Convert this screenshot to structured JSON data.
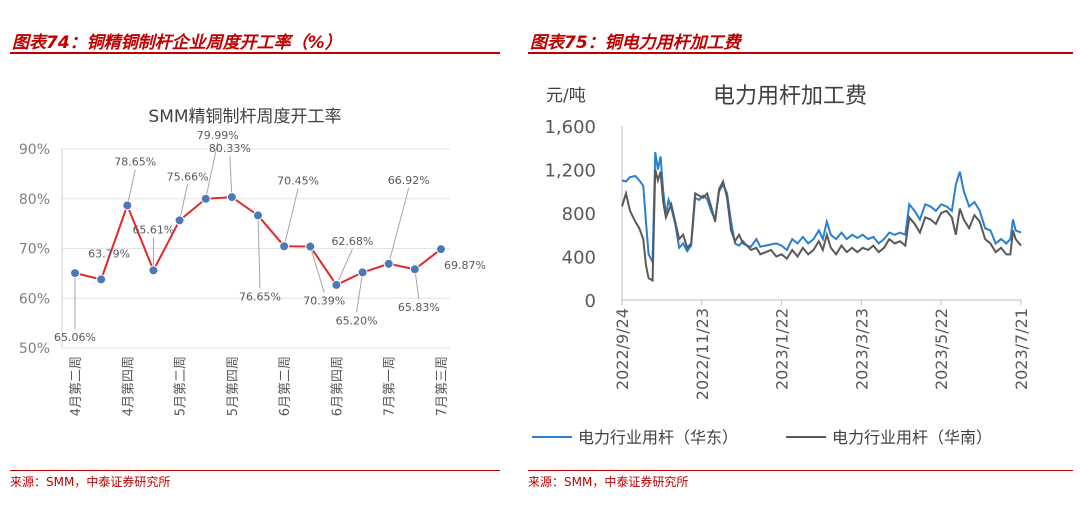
{
  "left": {
    "figure_title": "图表74：铜精铜制杆企业周度开工率（%）",
    "source": "来源：SMM，中泰证券研究所"
  },
  "right": {
    "figure_title": "图表75：铜电力用杆加工费",
    "source": "来源：SMM，中泰证券研究所"
  },
  "colors": {
    "accent": "#c00000",
    "line_red": "#e02a2a",
    "marker": "#4a78b8",
    "line_blue": "#2a7fd0",
    "line_gray": "#595959"
  },
  "chart_data": [
    {
      "type": "line",
      "title": "SMM精铜制杆周度开工率",
      "ylim": [
        50,
        90
      ],
      "yticks": [
        "50%",
        "60%",
        "70%",
        "80%",
        "90%"
      ],
      "xtick_labels": [
        "4月第二周",
        "4月第四周",
        "5月第二周",
        "5月第四周",
        "6月第二周",
        "6月第四周",
        "7月第一周",
        "7月第三周"
      ],
      "xtick_index": [
        0,
        2,
        4,
        6,
        8,
        10,
        12,
        14
      ],
      "values": [
        65.06,
        63.79,
        78.65,
        65.61,
        75.66,
        79.99,
        80.33,
        76.65,
        70.45,
        70.39,
        62.68,
        65.2,
        66.92,
        65.83,
        69.87
      ],
      "data_labels": [
        "65.06%",
        "63.79%",
        "78.65%",
        "65.61%",
        "75.66%",
        "79.99%",
        "80.33%",
        "76.65%",
        "70.45%",
        "70.39%",
        "62.68%",
        "65.20%",
        "66.92%",
        "65.83%",
        "69.87%"
      ]
    },
    {
      "type": "line",
      "title": "电力用杆加工费",
      "ylabel": "元/吨",
      "ylim": [
        0,
        1600
      ],
      "yticks": [
        "0",
        "400",
        "800",
        "1,200",
        "1,600"
      ],
      "xtick_labels": [
        "2022/9/24",
        "2022/11/23",
        "2023/1/22",
        "2023/3/23",
        "2023/5/22",
        "2023/7/21"
      ],
      "xlim": [
        "2022-09-24",
        "2023-07-21"
      ],
      "series": [
        {
          "name": "电力行业用杆（华东）",
          "color": "#2a7fd0",
          "points": [
            [
              "2022-09-24",
              1100
            ],
            [
              "2022-09-27",
              1090
            ],
            [
              "2022-09-30",
              1130
            ],
            [
              "2022-10-04",
              1140
            ],
            [
              "2022-10-07",
              1100
            ],
            [
              "2022-10-10",
              1050
            ],
            [
              "2022-10-12",
              720
            ],
            [
              "2022-10-14",
              420
            ],
            [
              "2022-10-17",
              350
            ],
            [
              "2022-10-19",
              1360
            ],
            [
              "2022-10-21",
              1200
            ],
            [
              "2022-10-23",
              1320
            ],
            [
              "2022-10-25",
              1000
            ],
            [
              "2022-10-27",
              780
            ],
            [
              "2022-10-29",
              920
            ],
            [
              "2022-10-31",
              850
            ],
            [
              "2022-11-03",
              700
            ],
            [
              "2022-11-06",
              480
            ],
            [
              "2022-11-09",
              520
            ],
            [
              "2022-11-12",
              450
            ],
            [
              "2022-11-15",
              500
            ],
            [
              "2022-11-18",
              940
            ],
            [
              "2022-11-21",
              920
            ],
            [
              "2022-11-24",
              960
            ],
            [
              "2022-11-27",
              930
            ],
            [
              "2022-11-30",
              820
            ],
            [
              "2022-12-03",
              740
            ],
            [
              "2022-12-06",
              1000
            ],
            [
              "2022-12-09",
              1060
            ],
            [
              "2022-12-12",
              980
            ],
            [
              "2022-12-15",
              720
            ],
            [
              "2022-12-18",
              520
            ],
            [
              "2022-12-21",
              500
            ],
            [
              "2022-12-24",
              540
            ],
            [
              "2022-12-27",
              500
            ],
            [
              "2022-12-30",
              490
            ],
            [
              "2023-01-03",
              560
            ],
            [
              "2023-01-06",
              490
            ],
            [
              "2023-01-10",
              500
            ],
            [
              "2023-01-14",
              510
            ],
            [
              "2023-01-18",
              520
            ],
            [
              "2023-01-22",
              500
            ],
            [
              "2023-01-26",
              460
            ],
            [
              "2023-01-30",
              560
            ],
            [
              "2023-02-03",
              520
            ],
            [
              "2023-02-07",
              580
            ],
            [
              "2023-02-11",
              520
            ],
            [
              "2023-02-15",
              560
            ],
            [
              "2023-02-19",
              640
            ],
            [
              "2023-02-22",
              560
            ],
            [
              "2023-02-25",
              720
            ],
            [
              "2023-02-28",
              600
            ],
            [
              "2023-03-04",
              560
            ],
            [
              "2023-03-08",
              620
            ],
            [
              "2023-03-12",
              560
            ],
            [
              "2023-03-16",
              600
            ],
            [
              "2023-03-20",
              570
            ],
            [
              "2023-03-24",
              600
            ],
            [
              "2023-03-28",
              560
            ],
            [
              "2023-04-01",
              580
            ],
            [
              "2023-04-05",
              520
            ],
            [
              "2023-04-09",
              560
            ],
            [
              "2023-04-13",
              620
            ],
            [
              "2023-04-17",
              600
            ],
            [
              "2023-04-21",
              620
            ],
            [
              "2023-04-25",
              600
            ],
            [
              "2023-04-28",
              880
            ],
            [
              "2023-05-02",
              820
            ],
            [
              "2023-05-06",
              740
            ],
            [
              "2023-05-10",
              880
            ],
            [
              "2023-05-14",
              860
            ],
            [
              "2023-05-18",
              820
            ],
            [
              "2023-05-22",
              880
            ],
            [
              "2023-05-26",
              860
            ],
            [
              "2023-05-30",
              820
            ],
            [
              "2023-06-02",
              1060
            ],
            [
              "2023-06-05",
              1180
            ],
            [
              "2023-06-08",
              1000
            ],
            [
              "2023-06-12",
              860
            ],
            [
              "2023-06-16",
              900
            ],
            [
              "2023-06-20",
              820
            ],
            [
              "2023-06-24",
              660
            ],
            [
              "2023-06-28",
              640
            ],
            [
              "2023-07-02",
              520
            ],
            [
              "2023-07-06",
              560
            ],
            [
              "2023-07-10",
              520
            ],
            [
              "2023-07-13",
              560
            ],
            [
              "2023-07-15",
              740
            ],
            [
              "2023-07-17",
              640
            ],
            [
              "2023-07-21",
              620
            ]
          ]
        },
        {
          "name": "电力行业用杆（华南）",
          "color": "#595959",
          "points": [
            [
              "2022-09-24",
              860
            ],
            [
              "2022-09-27",
              980
            ],
            [
              "2022-09-30",
              820
            ],
            [
              "2022-10-04",
              720
            ],
            [
              "2022-10-07",
              660
            ],
            [
              "2022-10-10",
              560
            ],
            [
              "2022-10-12",
              320
            ],
            [
              "2022-10-14",
              200
            ],
            [
              "2022-10-17",
              180
            ],
            [
              "2022-10-19",
              1200
            ],
            [
              "2022-10-21",
              1100
            ],
            [
              "2022-10-23",
              1180
            ],
            [
              "2022-10-25",
              900
            ],
            [
              "2022-10-27",
              760
            ],
            [
              "2022-10-29",
              820
            ],
            [
              "2022-10-31",
              880
            ],
            [
              "2022-11-03",
              720
            ],
            [
              "2022-11-06",
              560
            ],
            [
              "2022-11-09",
              600
            ],
            [
              "2022-11-12",
              480
            ],
            [
              "2022-11-15",
              520
            ],
            [
              "2022-11-18",
              980
            ],
            [
              "2022-11-21",
              960
            ],
            [
              "2022-11-24",
              940
            ],
            [
              "2022-11-27",
              980
            ],
            [
              "2022-11-30",
              860
            ],
            [
              "2022-12-03",
              720
            ],
            [
              "2022-12-06",
              1020
            ],
            [
              "2022-12-09",
              1090
            ],
            [
              "2022-12-12",
              940
            ],
            [
              "2022-12-15",
              640
            ],
            [
              "2022-12-18",
              540
            ],
            [
              "2022-12-21",
              600
            ],
            [
              "2022-12-24",
              520
            ],
            [
              "2022-12-27",
              500
            ],
            [
              "2022-12-30",
              460
            ],
            [
              "2023-01-03",
              480
            ],
            [
              "2023-01-06",
              420
            ],
            [
              "2023-01-10",
              440
            ],
            [
              "2023-01-14",
              460
            ],
            [
              "2023-01-18",
              400
            ],
            [
              "2023-01-22",
              420
            ],
            [
              "2023-01-26",
              380
            ],
            [
              "2023-01-30",
              460
            ],
            [
              "2023-02-03",
              400
            ],
            [
              "2023-02-07",
              480
            ],
            [
              "2023-02-11",
              420
            ],
            [
              "2023-02-15",
              460
            ],
            [
              "2023-02-19",
              540
            ],
            [
              "2023-02-22",
              460
            ],
            [
              "2023-02-25",
              600
            ],
            [
              "2023-02-28",
              480
            ],
            [
              "2023-03-04",
              420
            ],
            [
              "2023-03-08",
              500
            ],
            [
              "2023-03-12",
              440
            ],
            [
              "2023-03-16",
              480
            ],
            [
              "2023-03-20",
              440
            ],
            [
              "2023-03-24",
              480
            ],
            [
              "2023-03-28",
              460
            ],
            [
              "2023-04-01",
              500
            ],
            [
              "2023-04-05",
              440
            ],
            [
              "2023-04-09",
              480
            ],
            [
              "2023-04-13",
              560
            ],
            [
              "2023-04-17",
              520
            ],
            [
              "2023-04-21",
              540
            ],
            [
              "2023-04-25",
              500
            ],
            [
              "2023-04-28",
              760
            ],
            [
              "2023-05-02",
              700
            ],
            [
              "2023-05-06",
              620
            ],
            [
              "2023-05-10",
              760
            ],
            [
              "2023-05-14",
              740
            ],
            [
              "2023-05-18",
              700
            ],
            [
              "2023-05-22",
              800
            ],
            [
              "2023-05-26",
              820
            ],
            [
              "2023-05-30",
              760
            ],
            [
              "2023-06-02",
              600
            ],
            [
              "2023-06-05",
              840
            ],
            [
              "2023-06-08",
              740
            ],
            [
              "2023-06-12",
              660
            ],
            [
              "2023-06-16",
              780
            ],
            [
              "2023-06-20",
              720
            ],
            [
              "2023-06-24",
              560
            ],
            [
              "2023-06-28",
              520
            ],
            [
              "2023-07-02",
              440
            ],
            [
              "2023-07-06",
              480
            ],
            [
              "2023-07-10",
              420
            ],
            [
              "2023-07-13",
              420
            ],
            [
              "2023-07-15",
              640
            ],
            [
              "2023-07-17",
              560
            ],
            [
              "2023-07-21",
              500
            ]
          ]
        }
      ]
    }
  ]
}
